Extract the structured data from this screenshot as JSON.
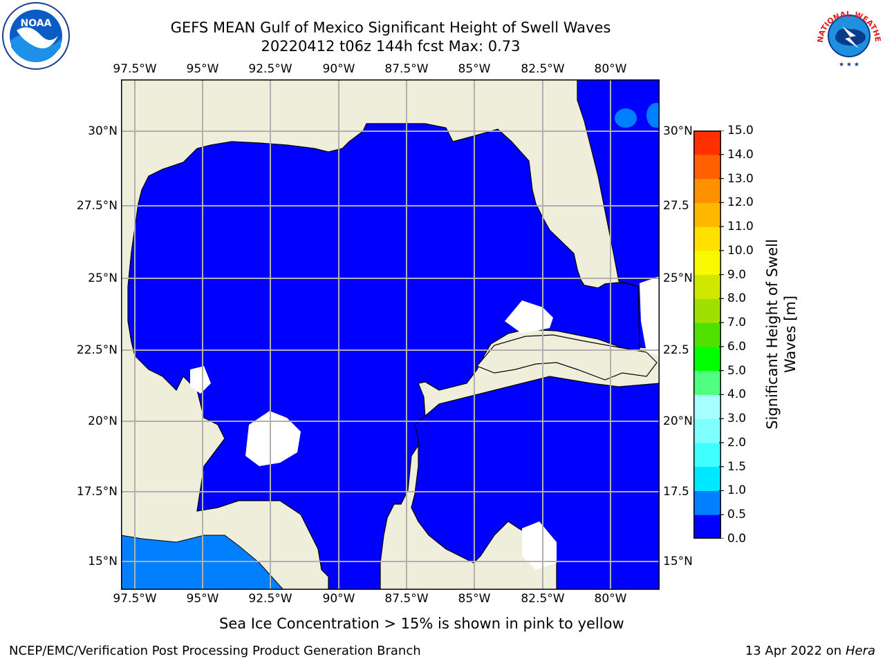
{
  "header": {
    "title_line1": "GEFS MEAN Gulf of Mexico Significant Height of Swell Waves",
    "title_line2": "20220412 t06z 144h fcst   Max: 0.73"
  },
  "logos": {
    "noaa_text": "NOAA",
    "nws_text": "NATIONAL WEATHER SERVICE"
  },
  "map": {
    "lon_labels": [
      "97.5°W",
      "95°W",
      "92.5°W",
      "90°W",
      "87.5°W",
      "85°W",
      "82.5°W",
      "80°W"
    ],
    "lat_labels": [
      "30°N",
      "27.5°N",
      "25°N",
      "22.5°N",
      "20°N",
      "17.5°N",
      "15°N"
    ],
    "lat_labels_right": [
      "30°N",
      "27.5",
      "25°N",
      "22.5",
      "20°N",
      "17.5",
      "15°N"
    ],
    "colors": {
      "ocean": "#0000ff",
      "land": "#efeedb",
      "swell_low": "#0080ff",
      "grid": "#b0b0b0"
    }
  },
  "colorbar": {
    "label_line1": "Significant Height of Swell",
    "label_line2": "Waves [m]",
    "ticks": [
      "0.0",
      "0.5",
      "1.0",
      "1.5",
      "2.0",
      "3.0",
      "4.0",
      "5.0",
      "6.0",
      "7.0",
      "8.0",
      "9.0",
      "10.0",
      "11.0",
      "12.0",
      "13.0",
      "14.0",
      "15.0"
    ],
    "colors": [
      "#0000ff",
      "#0080ff",
      "#00e8ff",
      "#40ffff",
      "#80ffff",
      "#a8ffff",
      "#50ff80",
      "#00ff00",
      "#50e000",
      "#a0e000",
      "#d0e800",
      "#f8f800",
      "#ffe000",
      "#ffb800",
      "#ff9000",
      "#ff6000",
      "#ff3000",
      "#ff0000"
    ]
  },
  "caption": "Sea Ice Concentration > 15% is shown in pink to yellow",
  "footer": {
    "left": "NCEP/EMC/Verification Post Processing Product Generation Branch",
    "date": "13 Apr 2022 on ",
    "host": "Hera"
  }
}
